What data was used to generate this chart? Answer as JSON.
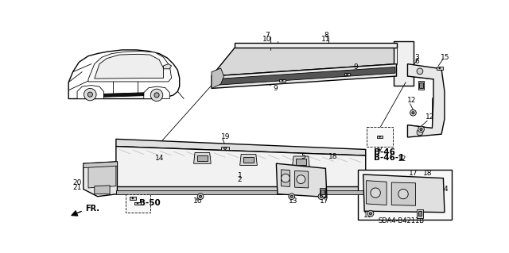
{
  "bg_color": "#ffffff",
  "line_color": "#000000",
  "fig_width": 6.4,
  "fig_height": 3.19,
  "diagram_code": "SDA4-B4211B",
  "B46": "B-46",
  "B461": "B-46-1",
  "B50": "B-50",
  "fr_label": "FR."
}
